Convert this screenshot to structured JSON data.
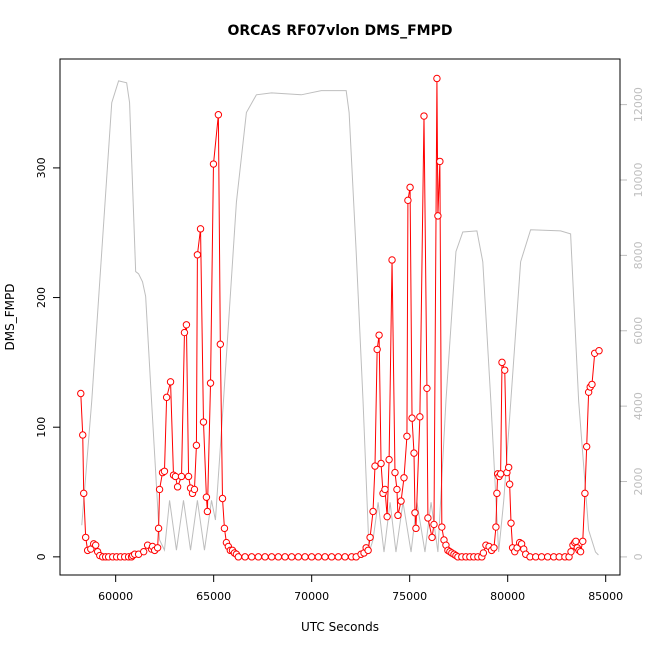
{
  "chart_data": {
    "type": "line",
    "title": "ORCAS RF07vlon DMS_FMPD",
    "xlabel": "UTC Seconds",
    "ylabel": "DMS_FMPD",
    "xlim": [
      57160,
      85730
    ],
    "ylim": [
      -14,
      384
    ],
    "y2lim": [
      -480,
      13210
    ],
    "xticks": [
      60000,
      65000,
      70000,
      75000,
      80000,
      85000
    ],
    "yticks": [
      0,
      100,
      200,
      300
    ],
    "y2ticks": [
      0,
      2000,
      4000,
      6000,
      8000,
      10000,
      12000
    ],
    "grid": false,
    "colors": {
      "primary": "#ff0000",
      "secondary": "#bebebe",
      "axis": "#000000"
    },
    "series": [
      {
        "axis": "left",
        "style": "points-and-lines",
        "x": [
          58220,
          58320,
          58370,
          58470,
          58570,
          58730,
          58880,
          58980,
          59080,
          59190,
          59340,
          59490,
          59640,
          59850,
          60050,
          60250,
          60460,
          60660,
          60810,
          60870,
          60970,
          61170,
          61430,
          61630,
          61830,
          61880,
          61990,
          62140,
          62190,
          62240,
          62390,
          62490,
          62600,
          62800,
          62950,
          63050,
          63160,
          63360,
          63510,
          63610,
          63720,
          63820,
          63920,
          64020,
          64120,
          64170,
          64330,
          64480,
          64630,
          64680,
          64840,
          64990,
          65240,
          65340,
          65450,
          65550,
          65650,
          65750,
          65850,
          65960,
          66060,
          66160,
          66260,
          66600,
          66940,
          67280,
          67620,
          67960,
          68300,
          68640,
          68980,
          69320,
          69660,
          70000,
          70340,
          70680,
          71020,
          71360,
          71700,
          72040,
          72270,
          72520,
          72670,
          72780,
          72880,
          72980,
          73130,
          73230,
          73340,
          73440,
          73540,
          73640,
          73740,
          73850,
          73950,
          74100,
          74250,
          74350,
          74400,
          74560,
          74710,
          74860,
          74910,
          75020,
          75120,
          75220,
          75270,
          75320,
          75520,
          75730,
          75880,
          75930,
          76140,
          76240,
          76390,
          76440,
          76540,
          76640,
          76750,
          76850,
          76950,
          77050,
          77150,
          77260,
          77360,
          77460,
          77660,
          77870,
          78070,
          78270,
          78480,
          78680,
          78760,
          78890,
          79050,
          79180,
          79300,
          79400,
          79450,
          79490,
          79560,
          79640,
          79710,
          79850,
          79960,
          80050,
          80100,
          80170,
          80250,
          80360,
          80480,
          80610,
          80710,
          80820,
          80920,
          81140,
          81430,
          81730,
          82040,
          82350,
          82630,
          82920,
          83130,
          83230,
          83330,
          83420,
          83480,
          83550,
          83640,
          83720,
          83830,
          83940,
          84030,
          84130,
          84210,
          84300,
          84440,
          84660
        ],
        "y": [
          126,
          94,
          49,
          15,
          5,
          6,
          10,
          9,
          4,
          1,
          0,
          0,
          0,
          0,
          0,
          0,
          0,
          0,
          0,
          1,
          2,
          2,
          4,
          9,
          6,
          8,
          5,
          7,
          22,
          52,
          65,
          66,
          123,
          135,
          63,
          62,
          54,
          62,
          173,
          179,
          62,
          53,
          49,
          52,
          86,
          233,
          253,
          104,
          46,
          35,
          134,
          303,
          341,
          164,
          45,
          22,
          11,
          8,
          5,
          5,
          3,
          2,
          0,
          0,
          0,
          0,
          0,
          0,
          0,
          0,
          0,
          0,
          0,
          0,
          0,
          0,
          0,
          0,
          0,
          0,
          0,
          2,
          3,
          7,
          5,
          15,
          35,
          70,
          160,
          171,
          72,
          49,
          52,
          31,
          75,
          229,
          65,
          52,
          32,
          43,
          61,
          93,
          275,
          285,
          107,
          80,
          34,
          22,
          108,
          340,
          130,
          30,
          15,
          25,
          369,
          263,
          305,
          23,
          13,
          9,
          5,
          4,
          3,
          2,
          1,
          0,
          0,
          0,
          0,
          0,
          0,
          0,
          3,
          9,
          8,
          5,
          7,
          23,
          49,
          64,
          62,
          64,
          150,
          144,
          65,
          69,
          56,
          26,
          7,
          4,
          7,
          11,
          10,
          6,
          2,
          0,
          0,
          0,
          0,
          0,
          0,
          0,
          0,
          4,
          9,
          11,
          12,
          7,
          5,
          4,
          12,
          49,
          85,
          127,
          131,
          133,
          157,
          159
        ]
      },
      {
        "axis": "right",
        "style": "line",
        "x": [
          58270,
          58780,
          59290,
          59800,
          60150,
          60560,
          60710,
          61020,
          61170,
          61370,
          61530,
          61830,
          62240,
          62490,
          62750,
          63100,
          63460,
          63820,
          64170,
          64530,
          64890,
          65090,
          65500,
          66160,
          66670,
          67180,
          67950,
          69470,
          70490,
          71760,
          71910,
          72270,
          72620,
          72930,
          73130,
          73390,
          73690,
          74000,
          74300,
          74660,
          75070,
          75370,
          75780,
          76090,
          76440,
          76850,
          77360,
          77710,
          78430,
          78730,
          79140,
          79540,
          79800,
          80160,
          80660,
          81170,
          82700,
          83210,
          83620,
          84130,
          84480,
          84630
        ],
        "y": [
          840,
          4140,
          8100,
          12050,
          12630,
          12580,
          12050,
          7570,
          7510,
          7300,
          6910,
          4140,
          450,
          180,
          1500,
          180,
          1500,
          180,
          1500,
          180,
          1500,
          980,
          4140,
          9410,
          11790,
          12260,
          12310,
          12260,
          12370,
          12370,
          11790,
          8100,
          4140,
          130,
          450,
          1450,
          130,
          1450,
          130,
          1450,
          130,
          1450,
          130,
          1450,
          130,
          4140,
          8100,
          8620,
          8650,
          7830,
          4140,
          130,
          1500,
          4140,
          7830,
          8680,
          8650,
          8570,
          4140,
          710,
          130,
          50
        ]
      }
    ]
  }
}
